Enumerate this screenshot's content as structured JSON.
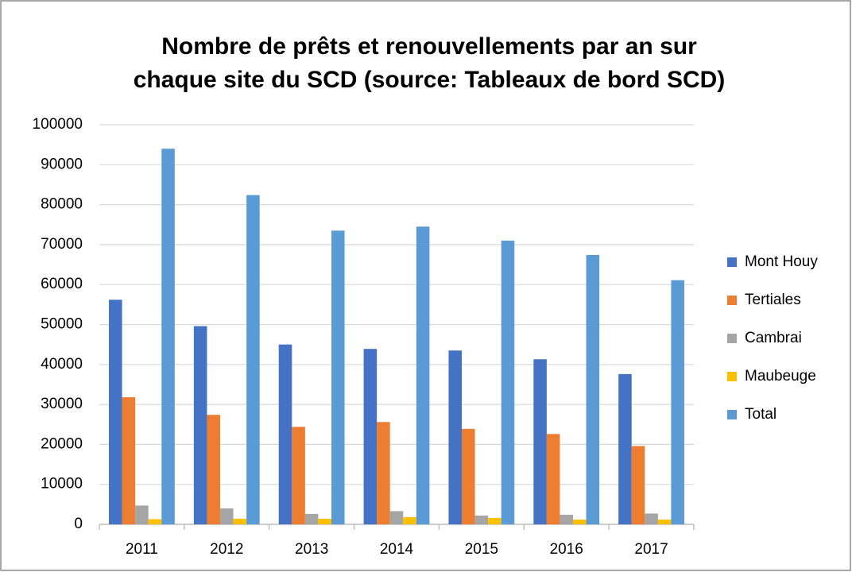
{
  "chart_data": {
    "type": "bar",
    "title": [
      "Nombre de prêts et renouvellements par an sur",
      "chaque site du SCD (source: Tableaux de bord SCD)"
    ],
    "categories": [
      "2011",
      "2012",
      "2013",
      "2014",
      "2015",
      "2016",
      "2017"
    ],
    "series": [
      {
        "name": "Mont Houy",
        "color": "#4472c4",
        "values": [
          56200,
          49600,
          45000,
          43900,
          43500,
          41300,
          37600
        ]
      },
      {
        "name": "Tertiales",
        "color": "#ed7d31",
        "values": [
          31800,
          27400,
          24400,
          25600,
          23900,
          22600,
          19600
        ]
      },
      {
        "name": "Cambrai",
        "color": "#a5a5a5",
        "values": [
          4700,
          4000,
          2600,
          3300,
          2200,
          2400,
          2700
        ]
      },
      {
        "name": "Maubeuge",
        "color": "#ffc000",
        "values": [
          1300,
          1400,
          1400,
          1800,
          1600,
          1200,
          1200
        ]
      },
      {
        "name": "Total",
        "color": "#5b9bd5",
        "values": [
          94000,
          82400,
          73500,
          74500,
          71000,
          67400,
          61100
        ]
      }
    ],
    "ylim": [
      0,
      100000
    ],
    "yticks": [
      0,
      10000,
      20000,
      30000,
      40000,
      50000,
      60000,
      70000,
      80000,
      90000,
      100000
    ],
    "grid": true,
    "legend": "right"
  }
}
